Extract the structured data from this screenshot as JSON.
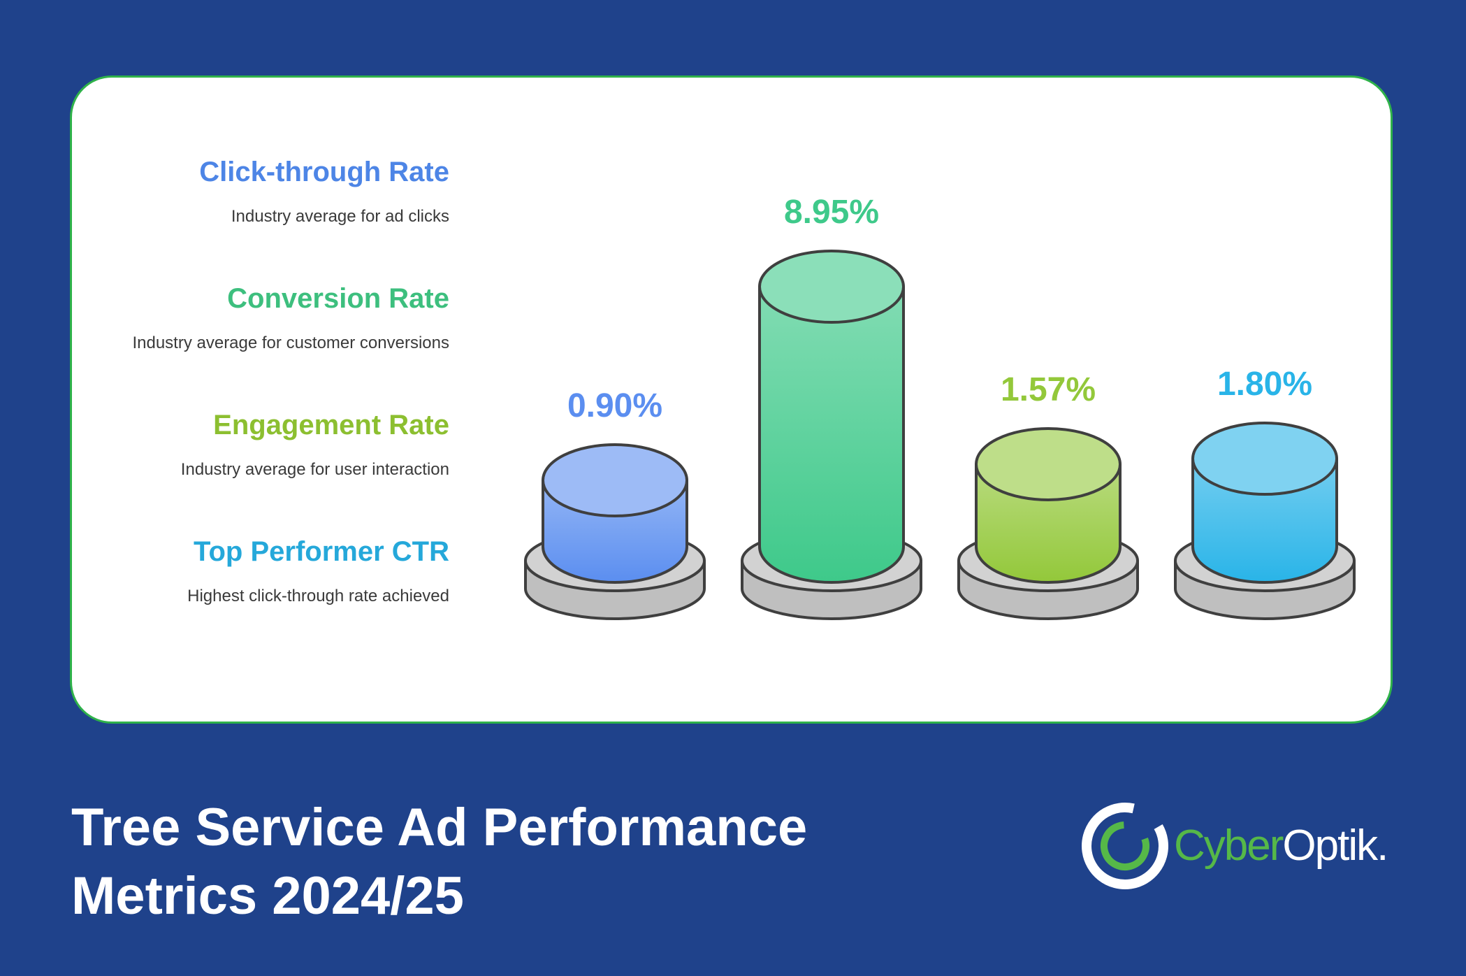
{
  "chart_data": {
    "type": "bar",
    "categories": [
      "Click-through Rate",
      "Conversion Rate",
      "Engagement Rate",
      "Top Performer CTR"
    ],
    "values": [
      0.9,
      8.95,
      1.57,
      1.8
    ],
    "value_labels": [
      "0.90%",
      "8.95%",
      "1.57%",
      "1.80%"
    ],
    "descriptions": [
      "Industry average for ad clicks",
      "Industry average for customer conversions",
      "Industry average for user interaction",
      "Highest click-through rate achieved"
    ],
    "colors": [
      "#5b8ef0",
      "#3ec98a",
      "#93c83a",
      "#29b4e8"
    ],
    "grid": false,
    "legend": "left"
  },
  "footer": {
    "title_line1": "Tree Service Ad Performance",
    "title_line2": "Metrics 2024/25"
  },
  "brand": {
    "name_part1": "Cyber",
    "name_part2": "Optik."
  }
}
